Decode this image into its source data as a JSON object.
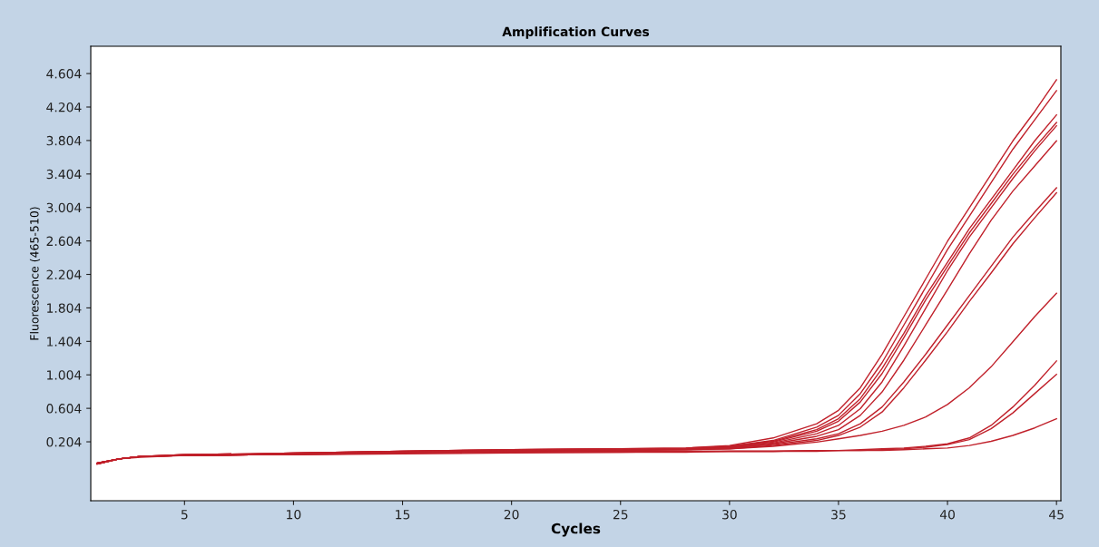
{
  "chart_data": {
    "type": "line",
    "title": "Amplification Curves",
    "xlabel": "Cycles",
    "ylabel": "Fluorescence (465-510)",
    "x": [
      1,
      2,
      3,
      5,
      8,
      10,
      15,
      20,
      25,
      28,
      30,
      32,
      34,
      35,
      36,
      37,
      38,
      39,
      40,
      41,
      42,
      43,
      44,
      45
    ],
    "xlim": [
      0.7,
      45.2
    ],
    "xticks": [
      5,
      10,
      15,
      20,
      25,
      30,
      35,
      40,
      45
    ],
    "ylim": [
      -0.5,
      4.93
    ],
    "yticks": [
      0.204,
      0.604,
      1.004,
      1.404,
      1.804,
      2.204,
      2.604,
      3.004,
      3.404,
      3.804,
      4.204,
      4.604
    ],
    "grid": false,
    "marker": "none",
    "line_style": "solid",
    "series": [
      {
        "color": "#c0202a",
        "values": [
          -0.06,
          0.0,
          0.03,
          0.05,
          0.06,
          0.07,
          0.09,
          0.11,
          0.12,
          0.13,
          0.16,
          0.25,
          0.42,
          0.58,
          0.85,
          1.25,
          1.7,
          2.15,
          2.6,
          3.0,
          3.4,
          3.8,
          4.15,
          4.53
        ]
      },
      {
        "color": "#c0202a",
        "values": [
          -0.05,
          0.0,
          0.03,
          0.05,
          0.06,
          0.07,
          0.09,
          0.11,
          0.12,
          0.13,
          0.15,
          0.22,
          0.38,
          0.52,
          0.78,
          1.15,
          1.6,
          2.05,
          2.5,
          2.9,
          3.3,
          3.7,
          4.05,
          4.4
        ]
      },
      {
        "color": "#c0202a",
        "values": [
          -0.06,
          0.0,
          0.03,
          0.04,
          0.05,
          0.06,
          0.08,
          0.1,
          0.11,
          0.12,
          0.15,
          0.21,
          0.35,
          0.48,
          0.72,
          1.08,
          1.5,
          1.95,
          2.35,
          2.75,
          3.1,
          3.45,
          3.8,
          4.11
        ]
      },
      {
        "color": "#c0202a",
        "values": [
          -0.05,
          0.0,
          0.03,
          0.05,
          0.06,
          0.07,
          0.09,
          0.11,
          0.12,
          0.12,
          0.14,
          0.2,
          0.33,
          0.45,
          0.68,
          1.02,
          1.45,
          1.9,
          2.3,
          2.7,
          3.05,
          3.4,
          3.72,
          4.02
        ]
      },
      {
        "color": "#c0202a",
        "values": [
          -0.06,
          0.0,
          0.03,
          0.04,
          0.05,
          0.06,
          0.08,
          0.1,
          0.11,
          0.12,
          0.14,
          0.19,
          0.3,
          0.4,
          0.6,
          0.92,
          1.35,
          1.8,
          2.25,
          2.65,
          3.0,
          3.35,
          3.68,
          3.98
        ]
      },
      {
        "color": "#c0202a",
        "values": [
          -0.05,
          0.0,
          0.03,
          0.05,
          0.06,
          0.07,
          0.09,
          0.1,
          0.11,
          0.12,
          0.13,
          0.18,
          0.27,
          0.35,
          0.52,
          0.8,
          1.18,
          1.6,
          2.02,
          2.45,
          2.85,
          3.2,
          3.5,
          3.8
        ]
      },
      {
        "color": "#c0202a",
        "values": [
          -0.06,
          0.0,
          0.03,
          0.04,
          0.05,
          0.06,
          0.08,
          0.1,
          0.11,
          0.12,
          0.13,
          0.17,
          0.24,
          0.3,
          0.42,
          0.62,
          0.92,
          1.25,
          1.6,
          1.95,
          2.3,
          2.65,
          2.95,
          3.24
        ]
      },
      {
        "color": "#c0202a",
        "values": [
          -0.05,
          0.0,
          0.03,
          0.04,
          0.05,
          0.06,
          0.08,
          0.09,
          0.1,
          0.11,
          0.12,
          0.16,
          0.22,
          0.28,
          0.38,
          0.56,
          0.85,
          1.18,
          1.52,
          1.88,
          2.22,
          2.57,
          2.88,
          3.18
        ]
      },
      {
        "color": "#c0202a",
        "values": [
          -0.06,
          0.0,
          0.03,
          0.04,
          0.05,
          0.06,
          0.08,
          0.09,
          0.1,
          0.11,
          0.12,
          0.15,
          0.2,
          0.24,
          0.28,
          0.33,
          0.4,
          0.5,
          0.65,
          0.85,
          1.1,
          1.4,
          1.7,
          1.98
        ]
      },
      {
        "color": "#c0202a",
        "values": [
          -0.05,
          0.0,
          0.03,
          0.04,
          0.05,
          0.06,
          0.07,
          0.08,
          0.09,
          0.09,
          0.09,
          0.09,
          0.1,
          0.1,
          0.11,
          0.12,
          0.13,
          0.15,
          0.18,
          0.25,
          0.4,
          0.62,
          0.88,
          1.17
        ]
      },
      {
        "color": "#c0202a",
        "values": [
          -0.06,
          0.0,
          0.03,
          0.04,
          0.05,
          0.05,
          0.07,
          0.08,
          0.08,
          0.09,
          0.09,
          0.09,
          0.1,
          0.1,
          0.1,
          0.11,
          0.12,
          0.14,
          0.17,
          0.23,
          0.36,
          0.55,
          0.78,
          1.01
        ]
      },
      {
        "color": "#c0202a",
        "values": [
          -0.05,
          0.0,
          0.02,
          0.04,
          0.05,
          0.05,
          0.06,
          0.07,
          0.08,
          0.08,
          0.09,
          0.09,
          0.09,
          0.1,
          0.1,
          0.1,
          0.11,
          0.12,
          0.13,
          0.16,
          0.21,
          0.28,
          0.37,
          0.48
        ]
      }
    ]
  }
}
